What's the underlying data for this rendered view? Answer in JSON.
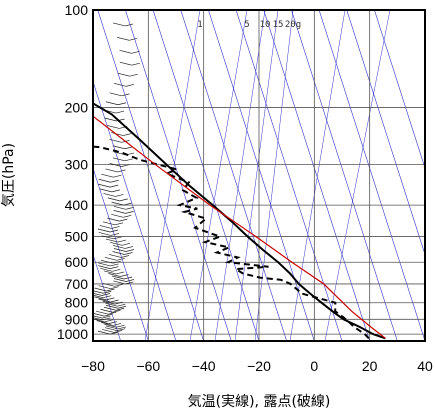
{
  "chart_data": {
    "type": "line",
    "xlabel": "気温(実線), 露点(破線)",
    "ylabel": "気圧(hPa)",
    "xlim": [
      -80,
      40
    ],
    "ylim": [
      1050,
      100
    ],
    "y_scale": "log",
    "grid": true,
    "x_ticks": [
      -80,
      -60,
      -40,
      -20,
      0,
      20,
      40
    ],
    "y_ticks": [
      100,
      200,
      300,
      400,
      500,
      600,
      700,
      800,
      900,
      1000
    ],
    "mixing_ratio_labels": [
      "1",
      "5",
      "10",
      "15",
      "20g"
    ],
    "colors": {
      "temperature": "#000000",
      "dewpoint": "#000000",
      "parcel": "#cc0000",
      "isotherm": "#3333cc",
      "frame": "#000000",
      "grid": "#555555",
      "wind": "#222222"
    },
    "series": [
      {
        "role": "temperature",
        "style": "solid",
        "points": [
          [
            26,
            1030
          ],
          [
            22,
            1000
          ],
          [
            18,
            950
          ],
          [
            13,
            900
          ],
          [
            10,
            850
          ],
          [
            7,
            800
          ],
          [
            4,
            750
          ],
          [
            1,
            700
          ],
          [
            -1,
            650
          ],
          [
            -4,
            600
          ],
          [
            -8,
            550
          ],
          [
            -12,
            500
          ],
          [
            -16,
            450
          ],
          [
            -21,
            400
          ],
          [
            -27,
            350
          ],
          [
            -33,
            300
          ],
          [
            -40,
            250
          ],
          [
            -47,
            210
          ],
          [
            -54,
            190
          ],
          [
            -62,
            170
          ],
          [
            -67,
            160
          ],
          [
            -68,
            150
          ],
          [
            -69,
            130
          ],
          [
            -68,
            115
          ],
          [
            -67,
            100
          ]
        ]
      },
      {
        "role": "dewpoint",
        "style": "dashed",
        "points": [
          [
            20,
            1030
          ],
          [
            19,
            1000
          ],
          [
            16,
            950
          ],
          [
            14,
            900
          ],
          [
            11,
            850
          ],
          [
            12,
            800
          ],
          [
            1,
            750
          ],
          [
            -2,
            700
          ],
          [
            -5,
            680
          ],
          [
            -12,
            670
          ],
          [
            -18,
            650
          ],
          [
            -20,
            630
          ],
          [
            -8,
            620
          ],
          [
            -22,
            600
          ],
          [
            -18,
            580
          ],
          [
            -25,
            560
          ],
          [
            -20,
            540
          ],
          [
            -28,
            520
          ],
          [
            -22,
            500
          ],
          [
            -30,
            470
          ],
          [
            -25,
            440
          ],
          [
            -32,
            420
          ],
          [
            -27,
            410
          ],
          [
            -33,
            400
          ],
          [
            -26,
            380
          ],
          [
            -30,
            360
          ],
          [
            -27,
            340
          ],
          [
            -34,
            320
          ],
          [
            -30,
            310
          ],
          [
            -42,
            290
          ],
          [
            -48,
            275
          ],
          [
            -55,
            265
          ],
          [
            -66,
            260
          ],
          [
            -80,
            260
          ]
        ]
      },
      {
        "role": "parcel",
        "style": "solid",
        "points": [
          [
            26,
            1030
          ],
          [
            22,
            950
          ],
          [
            17,
            850
          ],
          [
            10,
            700
          ],
          [
            1,
            600
          ],
          [
            -9,
            500
          ],
          [
            -22,
            400
          ],
          [
            -37,
            300
          ],
          [
            -57,
            200
          ],
          [
            -71,
            160
          ],
          [
            -80,
            145
          ]
        ]
      }
    ]
  }
}
